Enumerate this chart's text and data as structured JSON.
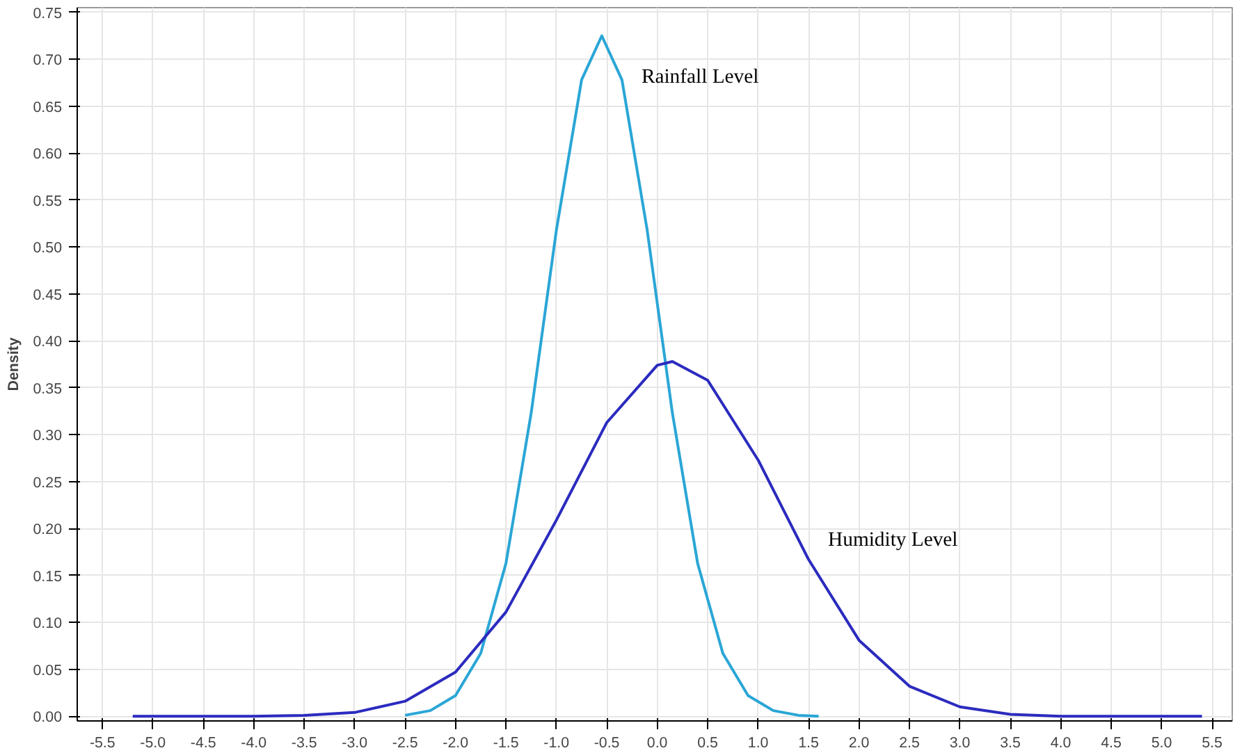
{
  "chart_data": {
    "type": "line",
    "ylabel": "Density",
    "xlim": [
      -5.75,
      5.7
    ],
    "ylim": [
      -0.005,
      0.755
    ],
    "xticks": [
      {
        "value": -5.5,
        "label": "-5.5"
      },
      {
        "value": -5.0,
        "label": "-5.0"
      },
      {
        "value": -4.5,
        "label": "-4.5"
      },
      {
        "value": -4.0,
        "label": "-4.0"
      },
      {
        "value": -3.5,
        "label": "-3.5"
      },
      {
        "value": -3.0,
        "label": "-3.0"
      },
      {
        "value": -2.5,
        "label": "-2.5"
      },
      {
        "value": -2.0,
        "label": "-2.0"
      },
      {
        "value": -1.5,
        "label": "-1.5"
      },
      {
        "value": -1.0,
        "label": "-1.0"
      },
      {
        "value": -0.5,
        "label": "-0.5"
      },
      {
        "value": 0,
        "label": "0.0"
      },
      {
        "value": 0.5,
        "label": "0.5"
      },
      {
        "value": 1.0,
        "label": "1.0"
      },
      {
        "value": 1.5,
        "label": "1.5"
      },
      {
        "value": 2.0,
        "label": "2.0"
      },
      {
        "value": 2.5,
        "label": "2.5"
      },
      {
        "value": 3.0,
        "label": "3.0"
      },
      {
        "value": 3.5,
        "label": "3.5"
      },
      {
        "value": 4.0,
        "label": "4.0"
      },
      {
        "value": 4.5,
        "label": "4.5"
      },
      {
        "value": 5.0,
        "label": "5.0"
      },
      {
        "value": 5.5,
        "label": "5.5"
      }
    ],
    "yticks": [
      {
        "value": 0,
        "label": "0.00"
      },
      {
        "value": 0.05,
        "label": "0.05"
      },
      {
        "value": 0.1,
        "label": "0.10"
      },
      {
        "value": 0.15,
        "label": "0.15"
      },
      {
        "value": 0.2,
        "label": "0.20"
      },
      {
        "value": 0.25,
        "label": "0.25"
      },
      {
        "value": 0.3,
        "label": "0.30"
      },
      {
        "value": 0.35,
        "label": "0.35"
      },
      {
        "value": 0.4,
        "label": "0.40"
      },
      {
        "value": 0.45,
        "label": "0.45"
      },
      {
        "value": 0.5,
        "label": "0.50"
      },
      {
        "value": 0.55,
        "label": "0.55"
      },
      {
        "value": 0.6,
        "label": "0.60"
      },
      {
        "value": 0.65,
        "label": "0.65"
      },
      {
        "value": 0.7,
        "label": "0.70"
      },
      {
        "value": 0.75,
        "label": "0.75"
      }
    ],
    "grid": true,
    "series": [
      {
        "name": "Rainfall Level",
        "color": "#2aa6d6",
        "x": [
          -2.5,
          -2.25,
          -2.0,
          -1.75,
          -1.5,
          -1.25,
          -1.0,
          -0.75,
          -0.55,
          -0.35,
          -0.1,
          0.15,
          0.4,
          0.65,
          0.9,
          1.15,
          1.4,
          1.6
        ],
        "values": [
          0.001,
          0.006,
          0.022,
          0.067,
          0.163,
          0.323,
          0.518,
          0.678,
          0.725,
          0.678,
          0.518,
          0.323,
          0.163,
          0.067,
          0.022,
          0.006,
          0.001,
          0.0
        ]
      },
      {
        "name": "Humidity Level",
        "color": "#2b2bbf",
        "x": [
          -5.2,
          -4.0,
          -3.5,
          -3.0,
          -2.5,
          -2.0,
          -1.5,
          -1.0,
          -0.5,
          0.0,
          0.15,
          0.5,
          1.0,
          1.5,
          2.0,
          2.5,
          3.0,
          3.5,
          4.0,
          5.4
        ],
        "values": [
          0.0,
          0.0,
          0.001,
          0.004,
          0.016,
          0.047,
          0.111,
          0.209,
          0.313,
          0.374,
          0.378,
          0.358,
          0.273,
          0.167,
          0.081,
          0.032,
          0.01,
          0.002,
          0.0,
          0.0
        ]
      }
    ]
  }
}
